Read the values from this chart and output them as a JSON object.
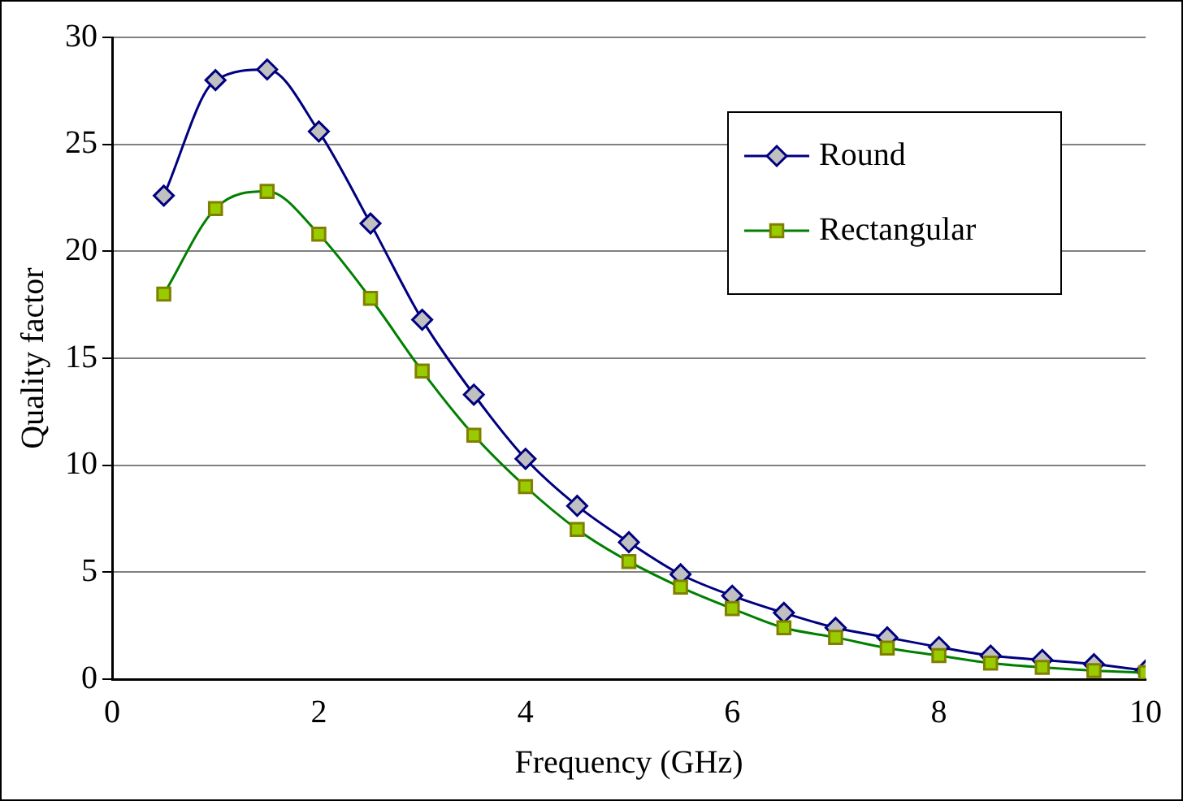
{
  "chart_data": {
    "type": "line",
    "xlabel": "Frequency (GHz)",
    "ylabel": "Quality factor",
    "x": [
      0.5,
      1.0,
      1.5,
      2.0,
      2.5,
      3.0,
      3.5,
      4.0,
      4.5,
      5.0,
      5.5,
      6.0,
      6.5,
      7.0,
      7.5,
      8.0,
      8.5,
      9.0,
      9.5,
      10.0
    ],
    "series": [
      {
        "name": "Round",
        "color": "#000080",
        "marker": "diamond",
        "values": [
          22.6,
          28.0,
          28.5,
          25.6,
          21.3,
          16.8,
          13.3,
          10.3,
          8.1,
          6.4,
          4.9,
          3.9,
          3.1,
          2.4,
          1.95,
          1.5,
          1.1,
          0.9,
          0.7,
          0.4
        ]
      },
      {
        "name": "Rectangular",
        "color": "#008000",
        "marker": "square",
        "values": [
          18.0,
          22.0,
          22.8,
          20.8,
          17.8,
          14.4,
          11.4,
          9.0,
          7.0,
          5.5,
          4.3,
          3.3,
          2.4,
          1.95,
          1.45,
          1.1,
          0.75,
          0.55,
          0.4,
          0.3
        ]
      }
    ],
    "xlim": [
      0,
      10
    ],
    "xticks": [
      0,
      2,
      4,
      6,
      8,
      10
    ],
    "ylim": [
      0,
      30
    ],
    "yticks": [
      0,
      5,
      10,
      15,
      20,
      25,
      30
    ],
    "grid": "y",
    "legend": "top right",
    "line_style": "solid"
  }
}
